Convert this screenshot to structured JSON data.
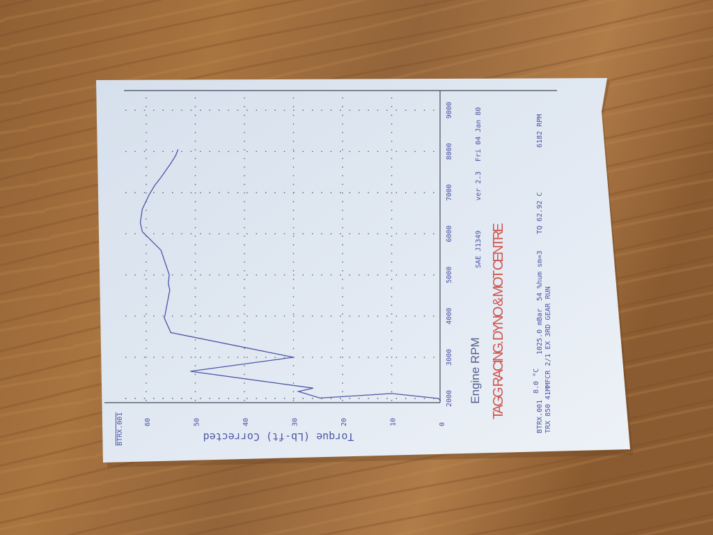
{
  "chart_data": {
    "type": "line",
    "corner_label": "BTRX.001",
    "xlabel": "Engine RPM",
    "ylabel": "Torque  (Lb-ft)  Corrected",
    "xlim": [
      2000,
      9000
    ],
    "ylim": [
      0,
      60
    ],
    "x_ticks": [
      "2000",
      "3000",
      "4000",
      "5000",
      "6000",
      "7000",
      "8000",
      "9000"
    ],
    "y_ticks": [
      "0",
      "10",
      "20",
      "30",
      "40",
      "50",
      "60"
    ],
    "grid": true,
    "orientation": "page rotated 90° counter-clockwise",
    "series": [
      {
        "color": "#4b56a6",
        "x": [
          1950,
          2000,
          2120,
          2010,
          2170,
          2250,
          2660,
          3000,
          3600,
          3950,
          4630,
          4800,
          5000,
          5600,
          6050,
          6270,
          6600,
          6950,
          7170,
          7370,
          7710,
          7900,
          8050
        ],
        "y": [
          0,
          0.5,
          10,
          24.6,
          29,
          26,
          51,
          30,
          55,
          56.3,
          55.2,
          55.5,
          55.3,
          57,
          60.8,
          61.2,
          60.8,
          59.4,
          58.3,
          57,
          55,
          54,
          53.5
        ]
      }
    ]
  },
  "header": {
    "standard": "SAE J1349",
    "version": "ver 2.3",
    "date": "Fri 04 Jan 80",
    "company": "TAGG RACING. DYNO & MOT CENTRE"
  },
  "footer": {
    "file": "BTRX.001",
    "temperature": "8.0 °C",
    "pressure": "1025.0 mBar",
    "humidity": "54 %hum sm=3",
    "peak_torque": "TQ  62.92 C",
    "peak_rpm": "6182 RPM",
    "description": "TRX 850 41MMFCR 2/1 EX 3RD GEAR RUN"
  },
  "colors": {
    "ink": "#4b56a6",
    "title_red": "#d0554f",
    "paper": "#dfe7f1",
    "table": "#9a6a3c"
  }
}
